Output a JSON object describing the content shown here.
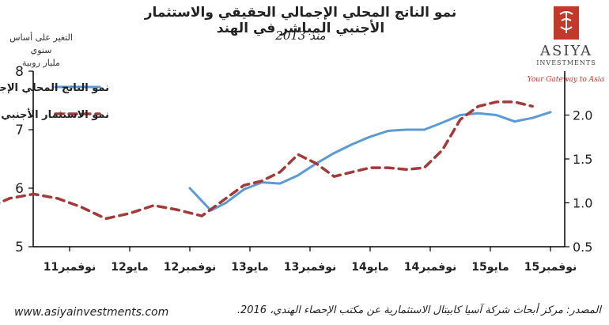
{
  "title": "نمو الناتج المحلي الإجمالي الحقيقي والاستثمار الأجنبي المباشر في الهند",
  "subtitle": "منذ 2013",
  "units_label": "التغير على أساس سنوي\nمليار روبية",
  "logo": {
    "name": "ASIYA",
    "sub": "INVESTMENTS",
    "tagline": "Your Gateway to Asia",
    "brand_color": "#c0392b"
  },
  "website": "www.asiyainvestments.com",
  "source": "المصدر: مركز أبحاث شركة آسيا كابيتال الاستثمارية عن مكتب الإحصاء الهندي، 2016.",
  "chart_data": {
    "type": "line",
    "x_categories": [
      "نوفمبر11",
      "مايو12",
      "نوفمبر12",
      "مايو13",
      "نوفمبر13",
      "مايو14",
      "نوفمبر14",
      "مايو15",
      "نوفمبر15"
    ],
    "left_axis": {
      "ylim": [
        5,
        8
      ],
      "ticks": [
        "5",
        "6",
        "7",
        "8"
      ]
    },
    "right_axis": {
      "ylim": [
        0.5,
        2.5
      ],
      "ticks": [
        "0.5",
        "1.0",
        "1.5",
        "2.0"
      ]
    },
    "grid": false,
    "legend_position": "top-left",
    "series": [
      {
        "name": "نمو الناتج المحلي الإجمالي",
        "axis": "left",
        "style": "solid",
        "color": "#5b9bd5",
        "x": [
          2.0,
          2.35,
          2.6,
          2.9,
          3.2,
          3.5,
          3.8,
          4.1,
          4.4,
          4.7,
          5.0,
          5.3,
          5.6,
          5.9,
          6.2,
          6.5,
          6.8,
          7.1,
          7.4,
          7.7,
          8.0
        ],
        "values": [
          6.0,
          5.62,
          5.75,
          5.98,
          6.1,
          6.08,
          6.22,
          6.42,
          6.6,
          6.75,
          6.88,
          6.98,
          7.0,
          7.0,
          7.12,
          7.25,
          7.28,
          7.25,
          7.14,
          7.2,
          7.3
        ]
      },
      {
        "name": "نمو الاستثمار الأجنبي المباشر",
        "axis": "right",
        "style": "dashed",
        "color": "#a33a3a",
        "x": [
          -1.5,
          -1.0,
          -0.6,
          -0.2,
          0.2,
          0.6,
          1.0,
          1.4,
          1.8,
          2.2,
          2.6,
          2.9,
          3.2,
          3.5,
          3.8,
          4.1,
          4.4,
          4.7,
          5.0,
          5.3,
          5.6,
          5.9,
          6.2,
          6.5,
          6.8,
          7.1,
          7.4,
          7.7
        ],
        "values": [
          0.9,
          1.05,
          1.1,
          1.05,
          0.95,
          0.82,
          0.88,
          0.97,
          0.92,
          0.85,
          1.05,
          1.2,
          1.25,
          1.35,
          1.55,
          1.45,
          1.3,
          1.35,
          1.4,
          1.4,
          1.38,
          1.4,
          1.6,
          1.95,
          2.1,
          2.15,
          2.15,
          2.1
        ]
      }
    ]
  }
}
